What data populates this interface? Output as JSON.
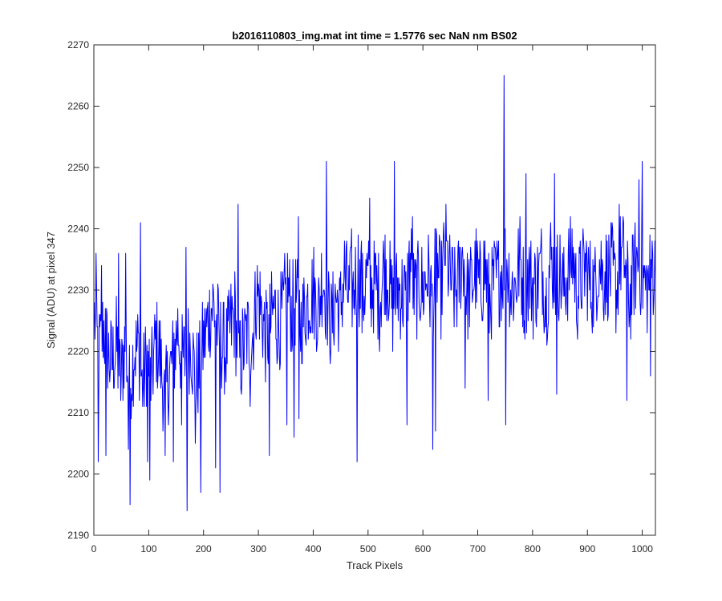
{
  "chart_data": {
    "type": "line",
    "title": "b2016110803_img.mat int time = 1.5776 sec  NaN nm BS02",
    "xlabel": "Track Pixels",
    "ylabel": "Signal (ADU) at pixel 347",
    "xlim": [
      0,
      1024
    ],
    "ylim": [
      2190,
      2270
    ],
    "xticks": [
      0,
      100,
      200,
      300,
      400,
      500,
      600,
      700,
      800,
      900,
      1000
    ],
    "yticks": [
      2190,
      2200,
      2210,
      2220,
      2230,
      2240,
      2250,
      2260,
      2270
    ],
    "grid": false,
    "legend": "none",
    "line_color": "#0000ff",
    "series": [
      {
        "x_start": 1,
        "x_step": 8,
        "values": [
          2226,
          2219,
          2224,
          2220,
          2218,
          2221,
          2215,
          2222,
          2214,
          2220,
          2221,
          2214,
          2219,
          2215,
          2222,
          2219,
          2212,
          2216,
          2219,
          2224,
          2218,
          2220,
          2222,
          2215,
          2217,
          2222,
          2225,
          2228,
          2224,
          2221,
          2220,
          2224,
          2226,
          2218,
          2221,
          2223,
          2222,
          2230,
          2227,
          2222,
          2224,
          2227,
          2224,
          2226,
          2231,
          2226,
          2229,
          2224,
          2227,
          2229,
          2230,
          2226,
          2233,
          2228,
          2224,
          2229,
          2226,
          2233,
          2229,
          2230,
          2234,
          2228,
          2232,
          2230,
          2231,
          2228,
          2234,
          2232,
          2227,
          2230,
          2230,
          2228,
          2235,
          2229,
          2231,
          2230,
          2233,
          2228,
          2234,
          2230,
          2237,
          2232,
          2229,
          2231,
          2236,
          2229,
          2231,
          2233,
          2230,
          2234,
          2228,
          2231,
          2232,
          2233,
          2235,
          2230,
          2231,
          2235,
          2229,
          2233,
          2230,
          2232,
          2234,
          2228,
          2235,
          2232,
          2233,
          2230,
          2233,
          2236,
          2229,
          2232,
          2234,
          2231,
          2230,
          2235,
          2232,
          2233,
          2233,
          2230,
          2236,
          2234,
          2228,
          2233,
          2235,
          2232,
          2230,
          2233
        ],
        "amplitude": 8,
        "spikes": [
          {
            "x": 4,
            "y": 2236
          },
          {
            "x": 8,
            "y": 2202
          },
          {
            "x": 14,
            "y": 2234
          },
          {
            "x": 22,
            "y": 2203
          },
          {
            "x": 45,
            "y": 2236
          },
          {
            "x": 58,
            "y": 2236
          },
          {
            "x": 63,
            "y": 2204
          },
          {
            "x": 66,
            "y": 2195
          },
          {
            "x": 85,
            "y": 2241
          },
          {
            "x": 98,
            "y": 2202
          },
          {
            "x": 102,
            "y": 2199
          },
          {
            "x": 130,
            "y": 2203
          },
          {
            "x": 145,
            "y": 2202
          },
          {
            "x": 160,
            "y": 2208
          },
          {
            "x": 168,
            "y": 2237
          },
          {
            "x": 170,
            "y": 2194
          },
          {
            "x": 185,
            "y": 2205
          },
          {
            "x": 195,
            "y": 2197
          },
          {
            "x": 222,
            "y": 2201
          },
          {
            "x": 230,
            "y": 2197
          },
          {
            "x": 263,
            "y": 2244
          },
          {
            "x": 285,
            "y": 2211
          },
          {
            "x": 320,
            "y": 2203
          },
          {
            "x": 352,
            "y": 2208
          },
          {
            "x": 365,
            "y": 2206
          },
          {
            "x": 373,
            "y": 2242
          },
          {
            "x": 374,
            "y": 2209
          },
          {
            "x": 424,
            "y": 2251
          },
          {
            "x": 470,
            "y": 2240
          },
          {
            "x": 480,
            "y": 2202
          },
          {
            "x": 488,
            "y": 2238
          },
          {
            "x": 503,
            "y": 2245
          },
          {
            "x": 548,
            "y": 2251
          },
          {
            "x": 571,
            "y": 2208
          },
          {
            "x": 581,
            "y": 2242
          },
          {
            "x": 618,
            "y": 2204
          },
          {
            "x": 623,
            "y": 2207
          },
          {
            "x": 677,
            "y": 2214
          },
          {
            "x": 719,
            "y": 2212
          },
          {
            "x": 748,
            "y": 2265
          },
          {
            "x": 751,
            "y": 2208
          },
          {
            "x": 788,
            "y": 2249
          },
          {
            "x": 840,
            "y": 2249
          },
          {
            "x": 844,
            "y": 2213
          },
          {
            "x": 958,
            "y": 2244
          },
          {
            "x": 972,
            "y": 2212
          },
          {
            "x": 994,
            "y": 2248
          },
          {
            "x": 1000,
            "y": 2251
          },
          {
            "x": 1015,
            "y": 2216
          },
          {
            "x": 1018,
            "y": 2238
          }
        ]
      }
    ]
  }
}
